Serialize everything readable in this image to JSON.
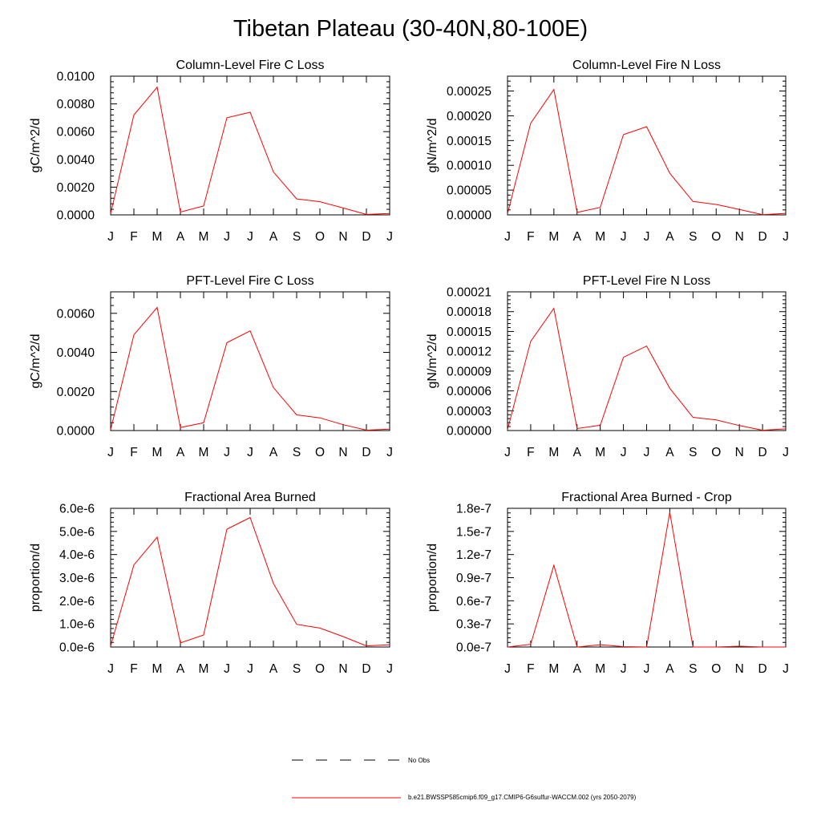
{
  "title": "Tibetan Plateau (30-40N,80-100E)",
  "colors": {
    "model_line": "#ff0000",
    "obs_line": "#000000",
    "axes": "#000000"
  },
  "legend": {
    "entries": [
      {
        "label": "No Obs",
        "style": "dashed",
        "color": "#000000"
      },
      {
        "label": "b.e21.BWSSP585cmip6.f09_g17.CMIP6-G6sulfur-WACCM.002 (yrs 2050-2079)",
        "style": "solid",
        "color": "#ff0000"
      }
    ],
    "placement": "bottom-center"
  },
  "chart_data": [
    {
      "type": "line",
      "title": "Column-Level Fire C Loss",
      "ylabel": "gC/m^2/d",
      "xlabel": "",
      "categories": [
        "J",
        "F",
        "M",
        "A",
        "M",
        "J",
        "J",
        "A",
        "S",
        "O",
        "N",
        "D",
        "J"
      ],
      "ylim": [
        0,
        0.01
      ],
      "yticks": [
        0,
        0.002,
        0.004,
        0.006,
        0.008,
        0.01
      ],
      "yticklabels": [
        "0.0000",
        "0.0020",
        "0.0040",
        "0.0060",
        "0.0080",
        "0.0100"
      ],
      "series": [
        {
          "values": [
            0.0001,
            0.0072,
            0.0092,
            0.0002,
            0.00065,
            0.007,
            0.0074,
            0.0031,
            0.00115,
            0.00095,
            0.0005,
            3e-05,
            0.0001
          ]
        }
      ]
    },
    {
      "type": "line",
      "title": "Column-Level Fire N Loss",
      "ylabel": "gN/m^2/d",
      "xlabel": "",
      "categories": [
        "J",
        "F",
        "M",
        "A",
        "M",
        "J",
        "J",
        "A",
        "S",
        "O",
        "N",
        "D",
        "J"
      ],
      "ylim": [
        0,
        0.00028
      ],
      "yticks": [
        0,
        5e-05,
        0.0001,
        0.00015,
        0.0002,
        0.00025
      ],
      "yticklabels": [
        "0.00000",
        "0.00005",
        "0.00010",
        "0.00015",
        "0.00020",
        "0.00025"
      ],
      "series": [
        {
          "values": [
            2.5e-06,
            0.000185,
            0.000253,
            5e-06,
            1.5e-05,
            0.000162,
            0.000178,
            8.4e-05,
            2.7e-05,
            2.1e-05,
            1.1e-05,
            5e-07,
            3e-06
          ]
        }
      ]
    },
    {
      "type": "line",
      "title": "PFT-Level Fire C Loss",
      "ylabel": "gC/m^2/d",
      "xlabel": "",
      "categories": [
        "J",
        "F",
        "M",
        "A",
        "M",
        "J",
        "J",
        "A",
        "S",
        "O",
        "N",
        "D",
        "J"
      ],
      "ylim": [
        0,
        0.0071
      ],
      "yticks": [
        0,
        0.002,
        0.004,
        0.006
      ],
      "yticklabels": [
        "0.0000",
        "0.0020",
        "0.0040",
        "0.0060"
      ],
      "series": [
        {
          "values": [
            5e-05,
            0.0049,
            0.0063,
            0.00015,
            0.0004,
            0.0045,
            0.0051,
            0.0022,
            0.0008,
            0.00065,
            0.0003,
            2e-05,
            7e-05
          ]
        }
      ]
    },
    {
      "type": "line",
      "title": "PFT-Level Fire N Loss",
      "ylabel": "gN/m^2/d",
      "xlabel": "",
      "categories": [
        "J",
        "F",
        "M",
        "A",
        "M",
        "J",
        "J",
        "A",
        "S",
        "O",
        "N",
        "D",
        "J"
      ],
      "ylim": [
        0,
        0.00021
      ],
      "yticks": [
        0,
        3e-05,
        6e-05,
        9e-05,
        0.00012,
        0.00015,
        0.00018,
        0.00021
      ],
      "yticklabels": [
        "0.00000",
        "0.00003",
        "0.00006",
        "0.00009",
        "0.00012",
        "0.00015",
        "0.00018",
        "0.00021"
      ],
      "series": [
        {
          "values": [
            1.5e-06,
            0.000135,
            0.000185,
            3e-06,
            8e-06,
            0.000111,
            0.000128,
            6.4e-05,
            2e-05,
            1.6e-05,
            7.5e-06,
            5e-07,
            2.5e-06
          ]
        }
      ]
    },
    {
      "type": "line",
      "title": "Fractional Area Burned",
      "ylabel": "proportion/d",
      "xlabel": "",
      "categories": [
        "J",
        "F",
        "M",
        "A",
        "M",
        "J",
        "J",
        "A",
        "S",
        "O",
        "N",
        "D",
        "J"
      ],
      "ylim": [
        0,
        6e-06
      ],
      "yticks": [
        0,
        1e-06,
        2e-06,
        3e-06,
        4e-06,
        5e-06,
        6e-06
      ],
      "yticklabels": [
        "0.0e-6",
        "1.0e-6",
        "2.0e-6",
        "3.0e-6",
        "4.0e-6",
        "5.0e-6",
        "6.0e-6"
      ],
      "series": [
        {
          "values": [
            5e-08,
            3.55e-06,
            4.75e-06,
            1.8e-07,
            5.2e-07,
            5.1e-06,
            5.6e-06,
            2.75e-06,
            9.8e-07,
            8.2e-07,
            4.5e-07,
            5e-08,
            1e-07
          ]
        }
      ]
    },
    {
      "type": "line",
      "title": "Fractional Area Burned - Crop",
      "ylabel": "proportion/d",
      "xlabel": "",
      "categories": [
        "J",
        "F",
        "M",
        "A",
        "M",
        "J",
        "J",
        "A",
        "S",
        "O",
        "N",
        "D",
        "J"
      ],
      "ylim": [
        0,
        1.8e-07
      ],
      "yticks": [
        0,
        3e-08,
        6e-08,
        9e-08,
        1.2e-07,
        1.5e-07,
        1.8e-07
      ],
      "yticklabels": [
        "0.0e-7",
        "0.3e-7",
        "0.6e-7",
        "0.9e-7",
        "1.2e-7",
        "1.5e-7",
        "1.8e-7"
      ],
      "series": [
        {
          "values": [
            0,
            3.5e-09,
            1.06e-07,
            0,
            3e-09,
            5e-10,
            0,
            1.75e-07,
            0,
            0,
            1e-09,
            0,
            0
          ]
        }
      ]
    }
  ]
}
